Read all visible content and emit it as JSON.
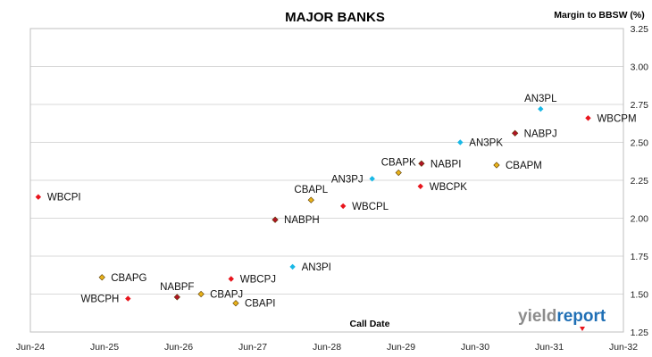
{
  "chart_data": {
    "type": "scatter",
    "title": "MAJOR BANKS",
    "xlabel": "Call Date",
    "ylabel": "Margin to BBSW (%)",
    "xlim": [
      "2024-06-01",
      "2032-06-01"
    ],
    "ylim": [
      1.25,
      3.25
    ],
    "yticks": [
      "1.25",
      "1.50",
      "1.75",
      "2.00",
      "2.25",
      "2.50",
      "2.75",
      "3.00",
      "3.25"
    ],
    "xticks": [
      "Jun-24",
      "Jun-25",
      "Jun-26",
      "Jun-27",
      "Jun-28",
      "Jun-29",
      "Jun-30",
      "Jun-31",
      "Jun-32"
    ],
    "grid": "horizontal",
    "colors": {
      "WBC": "#e8141c",
      "NAB": "#b01326",
      "CBA": "#e8b21a",
      "ANZ": "#19b8e6"
    },
    "points": [
      {
        "label": "WBCPI",
        "x": "2024-07-10",
        "y": 2.14,
        "issuer": "WBC",
        "label_side": "right"
      },
      {
        "label": "CBAPG",
        "x": "2025-05-20",
        "y": 1.61,
        "issuer": "CBA",
        "label_side": "right"
      },
      {
        "label": "WBCPH",
        "x": "2025-09-25",
        "y": 1.47,
        "issuer": "WBC",
        "label_side": "left"
      },
      {
        "label": "NABPF",
        "x": "2026-05-25",
        "y": 1.48,
        "issuer": "NAB",
        "label_side": "above"
      },
      {
        "label": "CBAPJ",
        "x": "2026-09-20",
        "y": 1.5,
        "issuer": "CBA",
        "label_side": "right"
      },
      {
        "label": "WBCPJ",
        "x": "2027-02-15",
        "y": 1.6,
        "issuer": "WBC",
        "label_side": "right"
      },
      {
        "label": "CBAPI",
        "x": "2027-03-10",
        "y": 1.44,
        "issuer": "CBA",
        "label_side": "right"
      },
      {
        "label": "NABPH",
        "x": "2027-09-20",
        "y": 1.99,
        "issuer": "NAB",
        "label_side": "right"
      },
      {
        "label": "AN3PI",
        "x": "2027-12-15",
        "y": 1.68,
        "issuer": "ANZ",
        "label_side": "right"
      },
      {
        "label": "CBAPL",
        "x": "2028-03-15",
        "y": 2.12,
        "issuer": "CBA",
        "label_side": "above"
      },
      {
        "label": "WBCPL",
        "x": "2028-08-20",
        "y": 2.08,
        "issuer": "WBC",
        "label_side": "right"
      },
      {
        "label": "AN3PJ",
        "x": "2029-01-10",
        "y": 2.26,
        "issuer": "ANZ",
        "label_side": "left"
      },
      {
        "label": "CBAPK",
        "x": "2029-05-20",
        "y": 2.3,
        "issuer": "CBA",
        "label_side": "above"
      },
      {
        "label": "NABPI",
        "x": "2029-09-10",
        "y": 2.36,
        "issuer": "NAB",
        "label_side": "right"
      },
      {
        "label": "WBCPK",
        "x": "2029-09-05",
        "y": 2.21,
        "issuer": "WBC",
        "label_side": "right"
      },
      {
        "label": "AN3PK",
        "x": "2030-03-20",
        "y": 2.5,
        "issuer": "ANZ",
        "label_side": "right"
      },
      {
        "label": "CBAPM",
        "x": "2030-09-15",
        "y": 2.35,
        "issuer": "CBA",
        "label_side": "right"
      },
      {
        "label": "NABPJ",
        "x": "2030-12-15",
        "y": 2.56,
        "issuer": "NAB",
        "label_side": "right"
      },
      {
        "label": "AN3PL",
        "x": "2031-04-20",
        "y": 2.72,
        "issuer": "ANZ",
        "label_side": "above"
      },
      {
        "label": "WBCPM",
        "x": "2031-12-10",
        "y": 2.66,
        "issuer": "WBC",
        "label_side": "right"
      }
    ]
  },
  "branding": {
    "logo_text_left": "yield",
    "logo_text_right": "report",
    "logo_color_left": "#8c8c8c",
    "logo_color_right": "#1f6fb5"
  }
}
